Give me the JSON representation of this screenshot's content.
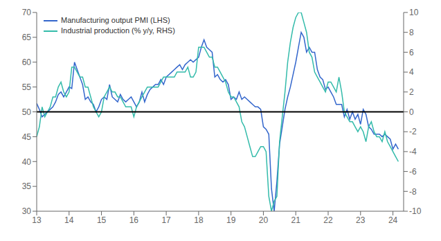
{
  "chart_data": {
    "type": "line",
    "x": [
      2013.0,
      2013.083,
      2013.167,
      2013.25,
      2013.333,
      2013.417,
      2013.5,
      2013.583,
      2013.667,
      2013.75,
      2013.833,
      2013.917,
      2014.0,
      2014.083,
      2014.167,
      2014.25,
      2014.333,
      2014.417,
      2014.5,
      2014.583,
      2014.667,
      2014.75,
      2014.833,
      2014.917,
      2015.0,
      2015.083,
      2015.167,
      2015.25,
      2015.333,
      2015.417,
      2015.5,
      2015.583,
      2015.667,
      2015.75,
      2015.833,
      2015.917,
      2016.0,
      2016.083,
      2016.167,
      2016.25,
      2016.333,
      2016.417,
      2016.5,
      2016.583,
      2016.667,
      2016.75,
      2016.833,
      2016.917,
      2017.0,
      2017.083,
      2017.167,
      2017.25,
      2017.333,
      2017.417,
      2017.5,
      2017.583,
      2017.667,
      2017.75,
      2017.833,
      2017.917,
      2018.0,
      2018.083,
      2018.167,
      2018.25,
      2018.333,
      2018.417,
      2018.5,
      2018.583,
      2018.667,
      2018.75,
      2018.833,
      2018.917,
      2019.0,
      2019.083,
      2019.167,
      2019.25,
      2019.333,
      2019.417,
      2019.5,
      2019.583,
      2019.667,
      2019.75,
      2019.833,
      2019.917,
      2020.0,
      2020.083,
      2020.167,
      2020.25,
      2020.333,
      2020.417,
      2020.5,
      2020.583,
      2020.667,
      2020.75,
      2020.833,
      2020.917,
      2021.0,
      2021.083,
      2021.167,
      2021.25,
      2021.333,
      2021.417,
      2021.5,
      2021.583,
      2021.667,
      2021.75,
      2021.833,
      2021.917,
      2022.0,
      2022.083,
      2022.167,
      2022.25,
      2022.333,
      2022.417,
      2022.5,
      2022.583,
      2022.667,
      2022.75,
      2022.833,
      2022.917,
      2023.0,
      2023.083,
      2023.167,
      2023.25,
      2023.333,
      2023.417,
      2023.5,
      2023.583,
      2023.667,
      2023.75,
      2023.833,
      2023.917,
      2024.0,
      2024.083,
      2024.167
    ],
    "series": [
      {
        "name": "Manufacturing output PMI (LHS)",
        "color": "#3366cc",
        "axis": "y",
        "values": [
          51.7,
          50.5,
          49.0,
          49.5,
          50.0,
          50.5,
          51.0,
          52.0,
          53.5,
          54.0,
          53.0,
          54.0,
          55.0,
          54.7,
          60.0,
          58.5,
          57.0,
          55.5,
          52.5,
          53.0,
          52.0,
          51.5,
          50.0,
          51.0,
          52.5,
          53.0,
          52.5,
          55.5,
          53.0,
          52.5,
          52.0,
          53.5,
          52.5,
          52.0,
          52.5,
          53.0,
          52.0,
          51.0,
          52.0,
          54.0,
          52.0,
          53.5,
          54.5,
          55.0,
          55.5,
          55.5,
          56.5,
          55.5,
          57.0,
          57.5,
          58.0,
          58.5,
          59.0,
          59.5,
          58.5,
          59.5,
          60.0,
          60.5,
          60.0,
          60.5,
          61.0,
          63.0,
          64.5,
          63.0,
          62.5,
          62.0,
          57.0,
          57.5,
          56.5,
          56.0,
          56.5,
          55.5,
          52.5,
          53.0,
          52.5,
          54.0,
          52.5,
          53.0,
          52.5,
          52.0,
          51.5,
          51.0,
          51.0,
          50.5,
          47.0,
          46.5,
          45.5,
          34.5,
          30.0,
          36.0,
          43.5,
          47.0,
          50.5,
          53.0,
          55.0,
          57.5,
          60.0,
          63.0,
          66.0,
          65.0,
          62.0,
          63.0,
          62.0,
          62.0,
          58.5,
          57.0,
          56.5,
          54.5,
          55.0,
          54.0,
          53.0,
          51.5,
          51.5,
          51.5,
          49.0,
          50.5,
          48.5,
          50.0,
          48.5,
          49.5,
          47.5,
          50.5,
          49.5,
          47.0,
          46.5,
          45.5,
          45.5,
          45.5,
          45.0,
          45.5,
          45.0,
          44.5,
          42.5,
          43.5,
          42.5
        ]
      },
      {
        "name": "Industrial production (% y/y, RHS)",
        "color": "#33bbaa",
        "axis": "y2",
        "values": [
          -2.5,
          -1.5,
          0.5,
          -0.5,
          0.0,
          0.5,
          1.5,
          1.5,
          2.5,
          3.0,
          2.0,
          1.5,
          2.0,
          4.5,
          4.5,
          4.0,
          3.5,
          3.5,
          2.5,
          2.5,
          1.5,
          0.5,
          0.0,
          -0.5,
          0.0,
          1.5,
          2.0,
          2.5,
          2.0,
          2.0,
          1.5,
          1.5,
          1.0,
          0.5,
          0.5,
          0.5,
          -0.5,
          0.5,
          1.0,
          1.5,
          2.0,
          2.5,
          2.5,
          2.5,
          2.5,
          2.5,
          3.0,
          3.5,
          3.5,
          3.5,
          3.5,
          3.5,
          4.0,
          4.0,
          4.0,
          4.0,
          4.5,
          3.5,
          3.5,
          4.0,
          6.5,
          6.5,
          6.5,
          6.0,
          5.5,
          5.5,
          4.5,
          4.5,
          4.0,
          3.5,
          3.0,
          2.0,
          1.5,
          1.5,
          1.0,
          0.5,
          -1.0,
          -1.5,
          -2.5,
          -3.5,
          -4.5,
          -4.5,
          -4.0,
          -3.5,
          -3.5,
          -4.0,
          -8.5,
          -10.0,
          -9.0,
          -8.5,
          -3.0,
          -0.5,
          2.0,
          5.0,
          7.0,
          8.5,
          9.5,
          10.0,
          10.0,
          9.0,
          8.0,
          6.0,
          5.5,
          4.0,
          3.5,
          3.0,
          2.5,
          2.0,
          3.0,
          3.0,
          2.5,
          2.0,
          3.5,
          2.0,
          0.0,
          -0.5,
          -1.0,
          -1.0,
          -1.5,
          -2.0,
          -1.5,
          -2.0,
          -3.0,
          -1.5,
          -1.0,
          -2.0,
          -2.5,
          -2.5,
          -3.0,
          -2.0,
          -3.0,
          -3.5,
          -4.0,
          -4.5,
          -5.0
        ]
      }
    ],
    "xlim": [
      2013.0,
      2024.33
    ],
    "xticks": [
      {
        "value": 2013,
        "label": "13"
      },
      {
        "value": 2014,
        "label": "14"
      },
      {
        "value": 2015,
        "label": "15"
      },
      {
        "value": 2016,
        "label": "16"
      },
      {
        "value": 2017,
        "label": "17"
      },
      {
        "value": 2018,
        "label": "18"
      },
      {
        "value": 2019,
        "label": "19"
      },
      {
        "value": 2020,
        "label": "20"
      },
      {
        "value": 2021,
        "label": "21"
      },
      {
        "value": 2022,
        "label": "22"
      },
      {
        "value": 2023,
        "label": "23"
      },
      {
        "value": 2024,
        "label": "24"
      }
    ],
    "ylim": [
      30,
      70
    ],
    "yticks": [
      30,
      35,
      40,
      45,
      50,
      55,
      60,
      65,
      70
    ],
    "y2lim": [
      -10,
      10
    ],
    "y2ticks": [
      -10,
      -8,
      -6,
      -4,
      -2,
      0,
      2,
      4,
      6,
      8,
      10
    ],
    "hline": {
      "y": 50,
      "color": "#000000"
    },
    "grid": false,
    "legend": "upper left"
  }
}
